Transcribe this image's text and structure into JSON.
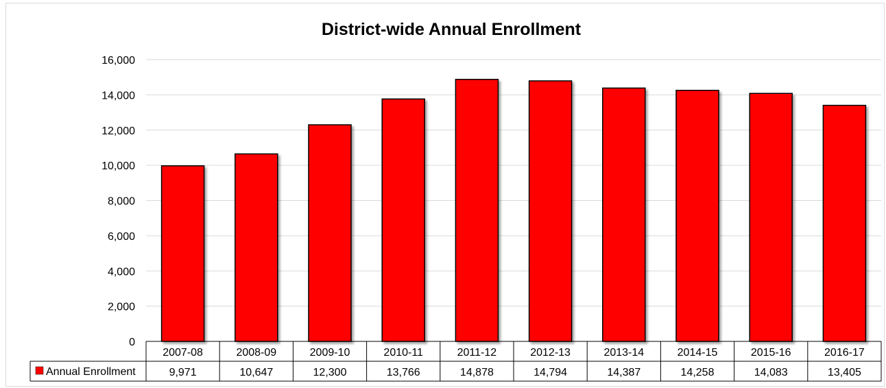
{
  "chart_data": {
    "type": "bar",
    "title": "District-wide Annual Enrollment",
    "xlabel": "",
    "ylabel": "",
    "categories": [
      "2007-08",
      "2008-09",
      "2009-10",
      "2010-11",
      "2011-12",
      "2012-13",
      "2013-14",
      "2014-15",
      "2015-16",
      "2016-17"
    ],
    "series": [
      {
        "name": "Annual Enrollment",
        "values": [
          9971,
          10647,
          12300,
          13766,
          14878,
          14794,
          14387,
          14258,
          14083,
          13405
        ],
        "labels": [
          "9,971",
          "10,647",
          "12,300",
          "13,766",
          "14,878",
          "14,794",
          "14,387",
          "14,258",
          "14,083",
          "13,405"
        ],
        "color": "#ff0000"
      }
    ],
    "ylim": [
      0,
      16000
    ],
    "yticks": [
      "0",
      "2,000",
      "4,000",
      "6,000",
      "8,000",
      "10,000",
      "12,000",
      "14,000",
      "16,000"
    ],
    "grid": true,
    "legend": "data-table",
    "colors": {
      "bar": "#ff0000",
      "bar_outline": "#000000",
      "grid": "#d9d9d9"
    }
  }
}
